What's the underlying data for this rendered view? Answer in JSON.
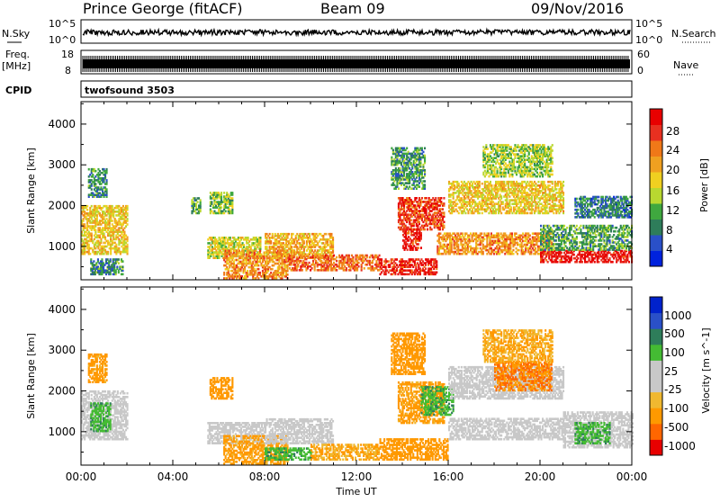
{
  "header": {
    "station": "Prince George (fitACF)",
    "beam": "Beam 09",
    "date": "09/Nov/2016"
  },
  "strips": {
    "nsky_label": "N.Sky",
    "nsearch_label": "N.Search",
    "nsky_ticks": [
      "10^5",
      "10^0"
    ],
    "nsky_right_ticks": [
      "10^5",
      "10^0"
    ],
    "freq_label": "Freq.",
    "freq_unit": "[MHz]",
    "freq_ticks": [
      "18",
      "8"
    ],
    "nave_label": "Nave",
    "nave_ticks": [
      "60",
      "0"
    ],
    "cpid_label": "CPID",
    "cpid_value": "twofsound 3503"
  },
  "colors": {
    "power_scale": [
      "#0022dd",
      "#2a50c8",
      "#2e7d5a",
      "#3fa83f",
      "#b8d830",
      "#f0d020",
      "#f0a020",
      "#f07818",
      "#e83020",
      "#e80000"
    ],
    "velocity_scale": [
      "#e80000",
      "#ff6600",
      "#ff9900",
      "#f0b830",
      "#c8c8c8",
      "#c8c8c8",
      "#44bb33",
      "#2e7d5a",
      "#2a50c8",
      "#0022cc"
    ]
  },
  "chart_data": [
    {
      "type": "heatmap",
      "title": "",
      "xlabel": "Time UT",
      "ylabel": "Slant Range [km]",
      "x_ticks": [
        "00:00",
        "04:00",
        "08:00",
        "12:00",
        "16:00",
        "20:00",
        "00:00"
      ],
      "y_ticks": [
        "1000",
        "2000",
        "3000",
        "4000"
      ],
      "xlim_hours": [
        0,
        24
      ],
      "ylim_km": [
        180,
        4550
      ],
      "colorbar": {
        "label": "Power [dB]",
        "ticks": [
          "28",
          "24",
          "20",
          "16",
          "12",
          "8",
          "4"
        ],
        "range": [
          0,
          30
        ]
      },
      "regions": [
        {
          "t": [
            0.0,
            2.0
          ],
          "r": [
            800,
            2000
          ],
          "v": 17
        },
        {
          "t": [
            0.3,
            1.1
          ],
          "r": [
            2200,
            2900
          ],
          "v": 8
        },
        {
          "t": [
            0.4,
            1.8
          ],
          "r": [
            300,
            700
          ],
          "v": 8
        },
        {
          "t": [
            4.8,
            5.2
          ],
          "r": [
            1800,
            2200
          ],
          "v": 10
        },
        {
          "t": [
            5.6,
            6.6
          ],
          "r": [
            1800,
            2300
          ],
          "v": 12
        },
        {
          "t": [
            5.5,
            7.8
          ],
          "r": [
            700,
            1200
          ],
          "v": 15
        },
        {
          "t": [
            6.2,
            9.0
          ],
          "r": [
            200,
            900
          ],
          "v": 21
        },
        {
          "t": [
            8.0,
            11.0
          ],
          "r": [
            700,
            1300
          ],
          "v": 19
        },
        {
          "t": [
            9.0,
            13.0
          ],
          "r": [
            400,
            800
          ],
          "v": 23
        },
        {
          "t": [
            13.0,
            15.5
          ],
          "r": [
            300,
            700
          ],
          "v": 27
        },
        {
          "t": [
            13.8,
            15.8
          ],
          "r": [
            1400,
            2200
          ],
          "v": 25
        },
        {
          "t": [
            14.0,
            14.8
          ],
          "r": [
            900,
            1400
          ],
          "v": 28
        },
        {
          "t": [
            13.5,
            15.0
          ],
          "r": [
            2400,
            3400
          ],
          "v": 9
        },
        {
          "t": [
            15.5,
            20.5
          ],
          "r": [
            800,
            1300
          ],
          "v": 21
        },
        {
          "t": [
            16.0,
            21.0
          ],
          "r": [
            1800,
            2600
          ],
          "v": 17
        },
        {
          "t": [
            17.5,
            20.5
          ],
          "r": [
            2700,
            3500
          ],
          "v": 13
        },
        {
          "t": [
            20.0,
            24.0
          ],
          "r": [
            600,
            900
          ],
          "v": 28
        },
        {
          "t": [
            20.0,
            24.0
          ],
          "r": [
            900,
            1500
          ],
          "v": 10
        },
        {
          "t": [
            21.5,
            24.0
          ],
          "r": [
            1700,
            2200
          ],
          "v": 7
        }
      ]
    },
    {
      "type": "heatmap",
      "title": "",
      "xlabel": "Time UT",
      "ylabel": "Slant Range [km]",
      "x_ticks": [
        "00:00",
        "04:00",
        "08:00",
        "12:00",
        "16:00",
        "20:00",
        "00:00"
      ],
      "y_ticks": [
        "1000",
        "2000",
        "3000",
        "4000"
      ],
      "xlim_hours": [
        0,
        24
      ],
      "ylim_km": [
        180,
        4550
      ],
      "colorbar": {
        "label": "Velocity [m s^-1]",
        "ticks": [
          "1000",
          "500",
          "100",
          "25",
          "-25",
          "-100",
          "-500",
          "-1000"
        ]
      },
      "regions": [
        {
          "t": [
            0.0,
            2.0
          ],
          "r": [
            800,
            2000
          ],
          "v": 0
        },
        {
          "t": [
            0.4,
            1.3
          ],
          "r": [
            1000,
            1700
          ],
          "v": 80
        },
        {
          "t": [
            0.3,
            1.1
          ],
          "r": [
            2200,
            2900
          ],
          "v": -80
        },
        {
          "t": [
            5.6,
            6.6
          ],
          "r": [
            1800,
            2300
          ],
          "v": -200
        },
        {
          "t": [
            5.5,
            8.0
          ],
          "r": [
            700,
            1200
          ],
          "v": 0
        },
        {
          "t": [
            6.2,
            9.0
          ],
          "r": [
            200,
            900
          ],
          "v": -80
        },
        {
          "t": [
            8.0,
            11.0
          ],
          "r": [
            700,
            1300
          ],
          "v": 0
        },
        {
          "t": [
            8.0,
            10.0
          ],
          "r": [
            300,
            600
          ],
          "v": 80
        },
        {
          "t": [
            10.0,
            13.0
          ],
          "r": [
            300,
            700
          ],
          "v": -60
        },
        {
          "t": [
            13.0,
            16.0
          ],
          "r": [
            300,
            800
          ],
          "v": -150
        },
        {
          "t": [
            13.8,
            15.8
          ],
          "r": [
            1200,
            2200
          ],
          "v": -80
        },
        {
          "t": [
            14.8,
            16.2
          ],
          "r": [
            1400,
            2100
          ],
          "v": 80
        },
        {
          "t": [
            13.5,
            15.0
          ],
          "r": [
            2400,
            3400
          ],
          "v": -100
        },
        {
          "t": [
            16.0,
            21.0
          ],
          "r": [
            800,
            1300
          ],
          "v": 0
        },
        {
          "t": [
            16.0,
            21.0
          ],
          "r": [
            1800,
            2600
          ],
          "v": 0
        },
        {
          "t": [
            18.0,
            20.5
          ],
          "r": [
            2000,
            2700
          ],
          "v": -300
        },
        {
          "t": [
            17.5,
            20.5
          ],
          "r": [
            2700,
            3500
          ],
          "v": -60
        },
        {
          "t": [
            21.0,
            24.0
          ],
          "r": [
            600,
            1500
          ],
          "v": 0
        },
        {
          "t": [
            21.5,
            23.0
          ],
          "r": [
            700,
            1200
          ],
          "v": 80
        }
      ]
    }
  ]
}
